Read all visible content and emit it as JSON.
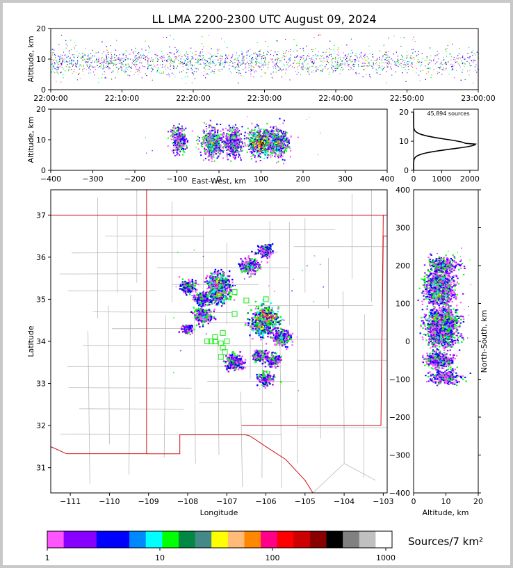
{
  "title": "LL LMA 2200-2300 UTC August 09, 2024",
  "colorbar": {
    "label": "Sources/7 km²",
    "ticks": [
      "1",
      "10",
      "100",
      "1000"
    ],
    "colors": [
      "#ff55ff",
      "#8800ff",
      "#8800ff",
      "#0000ff",
      "#0000ff",
      "#0088ff",
      "#00ffff",
      "#00ff00",
      "#008844",
      "#448888",
      "#ffff00",
      "#ffbb77",
      "#ff8800",
      "#ff0088",
      "#ff0000",
      "#cc0000",
      "#880000",
      "#000000",
      "#808080",
      "#c0c0c0",
      "#ffffff"
    ]
  },
  "chart_data": [
    {
      "id": "time-height",
      "type": "scatter",
      "xlabel": "",
      "ylabel": "Altitude, km",
      "xticks": [
        "22:00:00",
        "22:10:00",
        "22:20:00",
        "22:30:00",
        "22:40:00",
        "22:50:00",
        "23:00:00"
      ],
      "xlim": [
        "22:00:00",
        "23:00:00"
      ],
      "ylim": [
        0,
        20
      ],
      "yticks": [
        0,
        10,
        20
      ],
      "main_band_km": [
        5,
        13
      ]
    },
    {
      "id": "east-west-height",
      "type": "heatmap",
      "xlabel": "East-West, km",
      "ylabel": "Altitude, km",
      "xlim": [
        -400,
        400
      ],
      "ylim": [
        0,
        20
      ],
      "xticks": [
        -400,
        -300,
        -200,
        -100,
        0,
        100,
        200,
        300,
        400
      ],
      "yticks": [
        0,
        10,
        20
      ],
      "clusters_km": [
        {
          "x": -95,
          "z": 10,
          "density": 2
        },
        {
          "x": -15,
          "z": 9,
          "density": 4
        },
        {
          "x": 35,
          "z": 9,
          "density": 3
        },
        {
          "x": 100,
          "z": 9,
          "density": 5
        },
        {
          "x": 140,
          "z": 9,
          "density": 4
        }
      ]
    },
    {
      "id": "altitude-histogram",
      "type": "line",
      "annotation": "45,894 sources",
      "xlim": [
        0,
        2300
      ],
      "ylim": [
        0,
        21
      ],
      "xticks": [
        0,
        1000,
        2000
      ],
      "yticks": [
        0,
        10,
        20
      ],
      "peak_altitude_km": 9,
      "peak_count": 2200
    },
    {
      "id": "plan-view",
      "type": "heatmap",
      "xlabel": "Longitude",
      "ylabel": "Latitude",
      "xlim": [
        -111.5,
        -102.9
      ],
      "ylim": [
        30.4,
        37.6
      ],
      "xticks": [
        -111,
        -110,
        -109,
        -108,
        -107,
        -106,
        -105,
        -104,
        -103
      ],
      "yticks": [
        31,
        32,
        33,
        34,
        35,
        36,
        37
      ],
      "clusters": [
        {
          "lon": -106.0,
          "lat": 34.55,
          "density": 5
        },
        {
          "lon": -106.1,
          "lat": 34.35,
          "density": 4
        },
        {
          "lon": -107.2,
          "lat": 35.4,
          "density": 4
        },
        {
          "lon": -107.2,
          "lat": 35.1,
          "density": 4
        },
        {
          "lon": -107.6,
          "lat": 34.6,
          "density": 3
        },
        {
          "lon": -106.4,
          "lat": 35.8,
          "density": 3
        },
        {
          "lon": -105.6,
          "lat": 34.1,
          "density": 3
        },
        {
          "lon": -106.8,
          "lat": 33.5,
          "density": 3
        },
        {
          "lon": -108.0,
          "lat": 35.3,
          "density": 2
        },
        {
          "lon": -106.0,
          "lat": 33.1,
          "density": 2
        },
        {
          "lon": -106.0,
          "lat": 36.15,
          "density": 2
        },
        {
          "lon": -105.8,
          "lat": 33.55,
          "density": 2
        },
        {
          "lon": -106.15,
          "lat": 33.65,
          "density": 2
        },
        {
          "lon": -107.65,
          "lat": 35.0,
          "density": 2
        },
        {
          "lon": -108.0,
          "lat": 34.3,
          "density": 1
        }
      ],
      "stations": [
        {
          "lon": -106.8,
          "lat": 35.17
        },
        {
          "lon": -106.5,
          "lat": 34.97
        },
        {
          "lon": -106.0,
          "lat": 35.0
        },
        {
          "lon": -106.8,
          "lat": 34.65
        },
        {
          "lon": -107.1,
          "lat": 34.2
        },
        {
          "lon": -107.3,
          "lat": 34.1
        },
        {
          "lon": -107.4,
          "lat": 34.0
        },
        {
          "lon": -107.5,
          "lat": 34.0
        },
        {
          "lon": -107.15,
          "lat": 33.95
        },
        {
          "lon": -107.0,
          "lat": 34.0
        },
        {
          "lon": -107.1,
          "lat": 33.85
        },
        {
          "lon": -107.05,
          "lat": 33.75
        },
        {
          "lon": -107.15,
          "lat": 33.63
        },
        {
          "lon": -107.3,
          "lat": 34.0
        }
      ]
    },
    {
      "id": "north-south-height",
      "type": "heatmap",
      "xlabel": "Altitude, km",
      "ylabel": "North-South, km",
      "xlim": [
        0,
        20
      ],
      "ylim": [
        -400,
        400
      ],
      "xticks": [
        0,
        10,
        20
      ],
      "yticks": [
        -400,
        -300,
        -200,
        -100,
        0,
        100,
        200,
        300,
        400
      ],
      "clusters_km": [
        {
          "y": 200,
          "z": 9,
          "density": 3
        },
        {
          "y": 155,
          "z": 8,
          "density": 4
        },
        {
          "y": 120,
          "z": 8,
          "density": 4
        },
        {
          "y": 60,
          "z": 9,
          "density": 5
        },
        {
          "y": 40,
          "z": 9,
          "density": 4
        },
        {
          "y": 10,
          "z": 9,
          "density": 4
        },
        {
          "y": -50,
          "z": 8,
          "density": 3
        },
        {
          "y": -95,
          "z": 10,
          "density": 2
        }
      ]
    }
  ]
}
